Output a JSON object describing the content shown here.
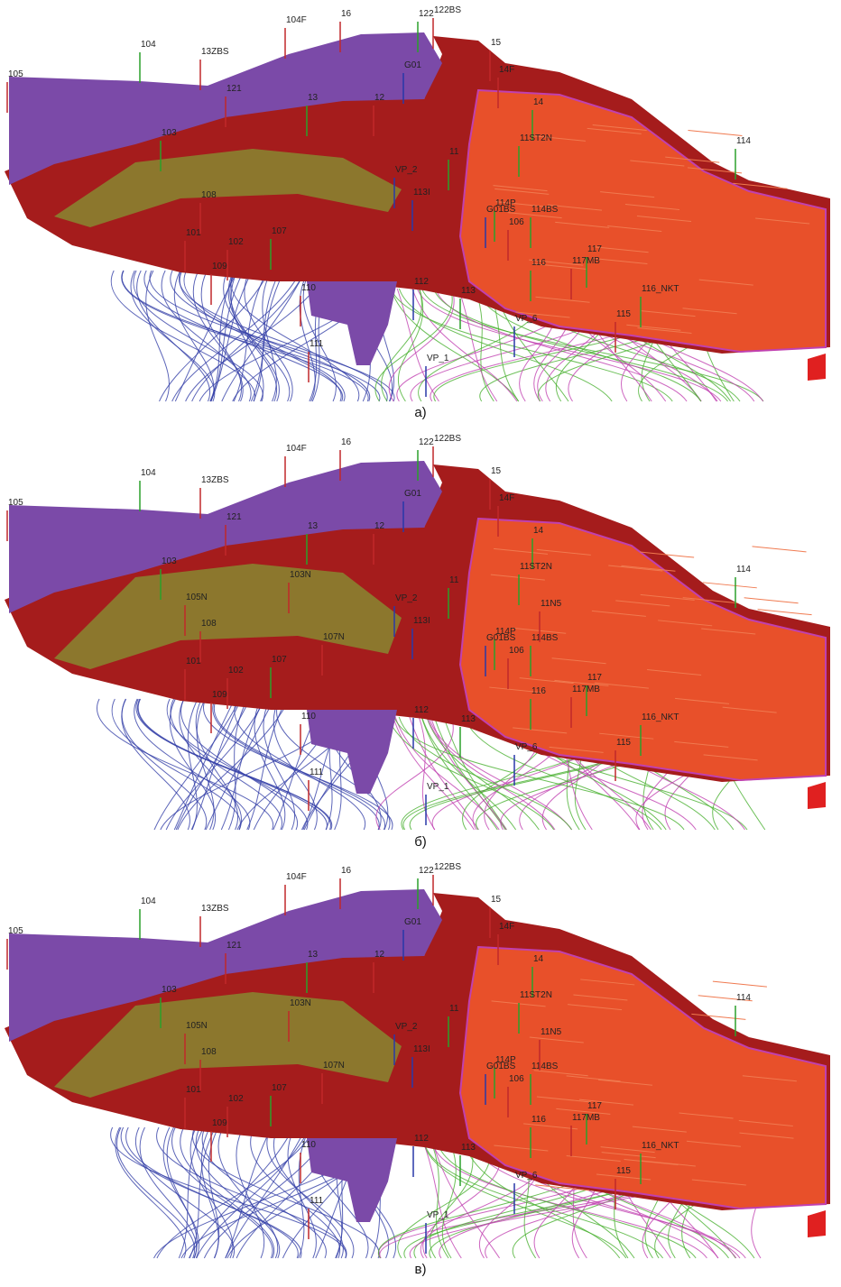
{
  "panels": [
    {
      "caption": "а)",
      "wells": [
        "105",
        "104",
        "13ZBS",
        "104F",
        "16",
        "122",
        "122BS",
        "15",
        "14F",
        "G01",
        "121",
        "13",
        "12",
        "14",
        "103",
        "11ST2N",
        "114",
        "11",
        "VP_2",
        "113I",
        "108",
        "114P",
        "G01BS",
        "114BS",
        "106",
        "101",
        "102",
        "107",
        "117",
        "116",
        "117MB",
        "109",
        "116_NKT",
        "110",
        "112",
        "113",
        "VP_6",
        "115",
        "111",
        "VP_1"
      ]
    },
    {
      "caption": "б)",
      "wells": [
        "105",
        "104",
        "13ZBS",
        "104F",
        "16",
        "122",
        "122BS",
        "15",
        "14F",
        "G01",
        "121",
        "13",
        "12",
        "14",
        "103",
        "11ST2N",
        "114",
        "11",
        "VP_2",
        "113I",
        "108",
        "114P",
        "G01BS",
        "114BS",
        "106",
        "101",
        "102",
        "107",
        "117",
        "116",
        "117MB",
        "109",
        "116_NKT",
        "110",
        "112",
        "113",
        "VP_6",
        "115",
        "111",
        "VP_1",
        "103N",
        "105N",
        "107N",
        "11N5"
      ]
    },
    {
      "caption": "в)",
      "wells": [
        "105",
        "104",
        "13ZBS",
        "104F",
        "16",
        "122",
        "122BS",
        "15",
        "14F",
        "G01",
        "121",
        "13",
        "12",
        "14",
        "103",
        "11ST2N",
        "114",
        "11",
        "VP_2",
        "113I",
        "108",
        "114P",
        "G01BS",
        "114BS",
        "106",
        "101",
        "102",
        "107",
        "117",
        "116",
        "117MB",
        "109",
        "116_NKT",
        "110",
        "112",
        "113",
        "VP_6",
        "115",
        "111",
        "VP_1",
        "103N",
        "105N",
        "107N",
        "11N5"
      ]
    }
  ]
}
